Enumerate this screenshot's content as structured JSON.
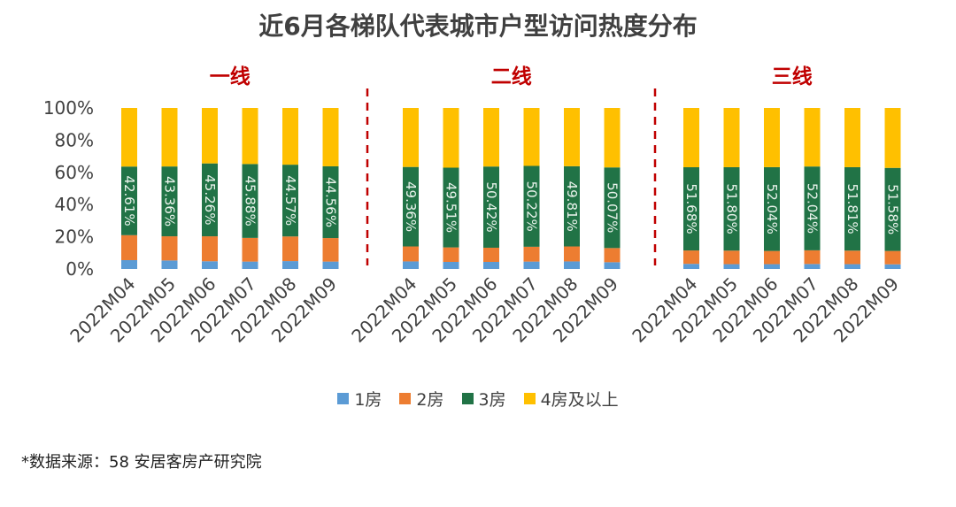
{
  "chart_data": {
    "type": "bar",
    "stacked": true,
    "title": "近6月各梯队代表城市户型访问热度分布",
    "yticks": [
      "0%",
      "20%",
      "40%",
      "60%",
      "80%",
      "100%"
    ],
    "ylim": [
      0,
      100
    ],
    "series_names": [
      "1房",
      "2房",
      "3房",
      "4房及以上"
    ],
    "colors": {
      "1房": "#5B9BD5",
      "2房": "#ED7D31",
      "3房": "#217346",
      "4房及以上": "#FFC000",
      "divider": "#C00000",
      "group_label": "#C00000"
    },
    "groups": [
      {
        "label": "一线",
        "categories": [
          "2022M04",
          "2022M05",
          "2022M06",
          "2022M07",
          "2022M08",
          "2022M09"
        ],
        "series": [
          {
            "name": "1房",
            "values": [
              5.5,
              5.3,
              4.8,
              4.6,
              4.9,
              4.6
            ]
          },
          {
            "name": "2房",
            "values": [
              15.5,
              15.0,
              15.5,
              14.7,
              15.3,
              14.6
            ]
          },
          {
            "name": "3房",
            "values": [
              42.61,
              43.36,
              45.26,
              45.88,
              44.57,
              44.56
            ]
          },
          {
            "name": "4房及以上",
            "values": [
              36.39,
              36.34,
              34.44,
              34.82,
              35.23,
              36.24
            ]
          }
        ],
        "labels": [
          "42.61%",
          "43.36%",
          "45.26%",
          "45.88%",
          "44.57%",
          "44.56%"
        ]
      },
      {
        "label": "二线",
        "categories": [
          "2022M04",
          "2022M05",
          "2022M06",
          "2022M07",
          "2022M08",
          "2022M09"
        ],
        "series": [
          {
            "name": "1房",
            "values": [
              4.7,
              4.4,
              4.4,
              4.6,
              4.7,
              4.2
            ]
          },
          {
            "name": "2房",
            "values": [
              9.3,
              9.0,
              8.8,
              9.2,
              9.3,
              8.8
            ]
          },
          {
            "name": "3房",
            "values": [
              49.36,
              49.51,
              50.42,
              50.22,
              49.81,
              50.07
            ]
          },
          {
            "name": "4房及以上",
            "values": [
              36.64,
              37.09,
              36.38,
              35.98,
              36.19,
              36.93
            ]
          }
        ],
        "labels": [
          "49.36%",
          "49.51%",
          "50.42%",
          "50.22%",
          "49.81%",
          "50.07%"
        ]
      },
      {
        "label": "三线",
        "categories": [
          "2022M04",
          "2022M05",
          "2022M06",
          "2022M07",
          "2022M08",
          "2022M09"
        ],
        "series": [
          {
            "name": "1房",
            "values": [
              3.2,
              3.0,
              3.0,
              3.1,
              3.0,
              2.9
            ]
          },
          {
            "name": "2房",
            "values": [
              8.3,
              8.4,
              8.2,
              8.5,
              8.4,
              8.3
            ]
          },
          {
            "name": "3房",
            "values": [
              51.68,
              51.8,
              52.04,
              52.04,
              51.81,
              51.58
            ]
          },
          {
            "name": "4房及以上",
            "values": [
              36.82,
              36.8,
              36.76,
              36.36,
              36.79,
              37.22
            ]
          }
        ],
        "labels": [
          "51.68%",
          "51.80%",
          "52.04%",
          "52.04%",
          "51.81%",
          "51.58%"
        ]
      }
    ]
  },
  "source": "*数据来源：58 安居客房产研究院"
}
